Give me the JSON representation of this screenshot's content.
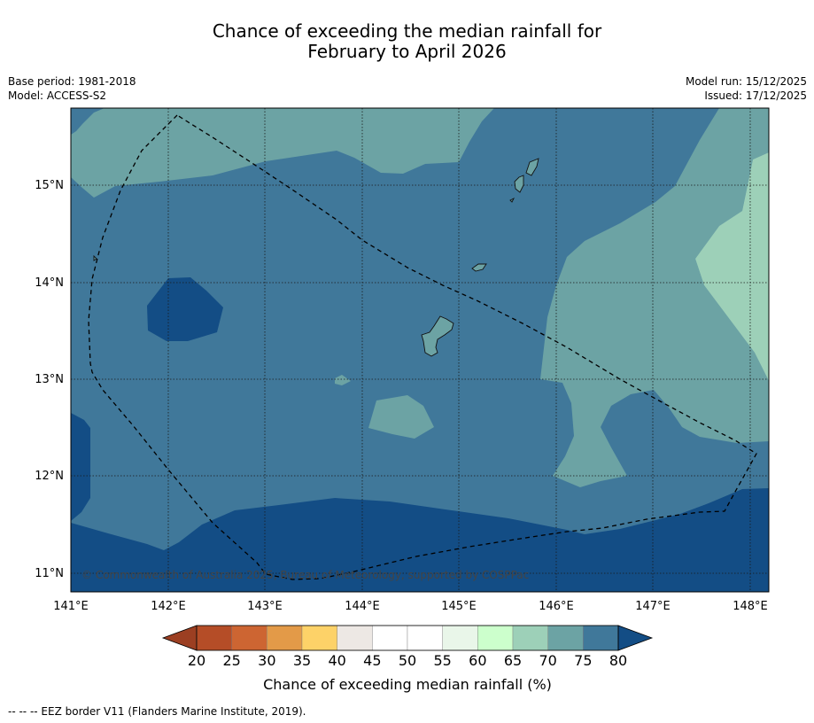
{
  "title": {
    "line1": "Chance of exceeding the median rainfall for",
    "line2": "February to April 2026"
  },
  "meta": {
    "base_period": "Base period: 1981-2018",
    "model": "Model: ACCESS-S2",
    "model_run": "Model run: 15/12/2025",
    "issued": "Issued: 17/12/2025"
  },
  "map": {
    "lon_ticks": [
      "141°E",
      "142°E",
      "143°E",
      "144°E",
      "145°E",
      "146°E",
      "147°E",
      "148°E"
    ],
    "lat_ticks": [
      "15°N",
      "14°N",
      "13°N",
      "12°N",
      "11°N"
    ],
    "credit": "© Commonwealth of Australia 2025, Bureau of Meteorology, supported by COSPPac"
  },
  "colorbar": {
    "ticks": [
      "20",
      "25",
      "30",
      "35",
      "40",
      "45",
      "50",
      "55",
      "60",
      "65",
      "70",
      "75",
      "80"
    ],
    "colors": [
      "#9c3f22",
      "#b54d27",
      "#cd6532",
      "#e39a48",
      "#fdd268",
      "#ede8e4",
      "#ffffff",
      "#ffffff",
      "#e9f6e9",
      "#ccffcc",
      "#9dd0b8",
      "#6ca3a4",
      "#40789a",
      "#134d85"
    ],
    "label": "Chance of exceeding median rainfall (%)"
  },
  "legend": {
    "eez": "--  --  -- EEZ border V11 (Flanders Marine Institute, 2019)."
  }
}
